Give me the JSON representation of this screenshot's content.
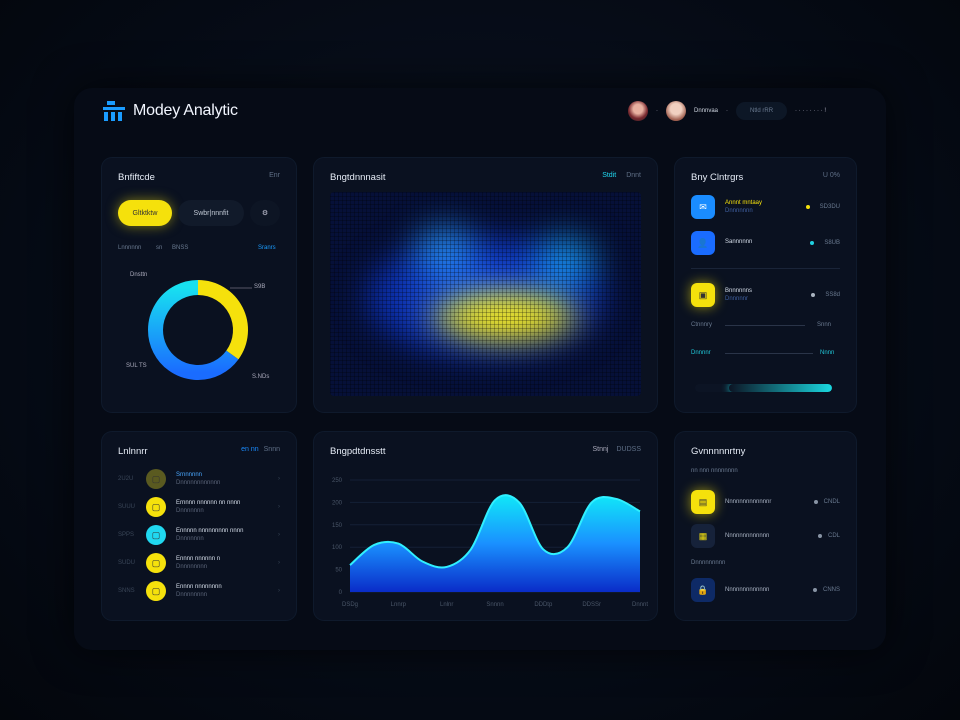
{
  "app": {
    "title": "Modey Analytic",
    "user_name": "Dnnnvaa",
    "header_button": "Ntld rRR",
    "header_meta": "· · · · · · · ·  !"
  },
  "card_overview": {
    "title": "Bnfiftcde",
    "meta": "Enr",
    "btn_active": "Gltktktw",
    "btn_secondary": "Swbr|nnnfit",
    "btn_icon": "filter-icon",
    "stats": [
      "Lnnnnnn",
      "sn",
      "BNSS"
    ],
    "stats_right": "Sranrs",
    "donut_labels": [
      "Dnsttn",
      "S9B",
      "SUL TS",
      "S.NDs"
    ],
    "donut": {
      "segments": [
        {
          "color": "#f5e10c",
          "value": 35
        },
        {
          "color": "#1aa0ff",
          "value": 65
        }
      ]
    }
  },
  "card_heatmap": {
    "title": "Bngtdnnnasit",
    "tag": "Stdit",
    "meta": "Dnnt"
  },
  "card_right": {
    "title": "Bny Clntrgrs",
    "meta": "U 0%",
    "items": [
      {
        "name": "Annnt mntaay",
        "sub": "Dnnnnnnn",
        "value": "SD3DU",
        "icon": "chat-icon",
        "color": "#1a8cff",
        "dot": "#f5e10c"
      },
      {
        "name": "Sannnnnn",
        "sub": "",
        "value": "S8UB",
        "icon": "user-icon",
        "color": "#1a6cff",
        "dot": "#20d0e0"
      },
      {
        "name": "Bnnnnnns",
        "sub": "Dnnnnnr",
        "value": "SS8d",
        "icon": "folder-icon",
        "color": "#f5e10c",
        "dot": "#aab4c0"
      }
    ],
    "slider1_label": "Ctnnnry",
    "slider1_value": "Snnn",
    "slider2_label": "Dnnnnr",
    "slider2_value": "Nnnn",
    "progress": 0.75
  },
  "card_list": {
    "title": "Lnlnnrr",
    "meta_accent": "en nn",
    "meta": "Snnn",
    "items": [
      {
        "id": "2U2U",
        "name": "Srnnnnnn",
        "sub": "Dnnnnnnnnnnnn",
        "color": "#5a5a20"
      },
      {
        "id": "SUUU",
        "name": "Ernnnn nnnnnn nn nnnn",
        "sub": "Dnnnnnnn",
        "color": "#f5e10c"
      },
      {
        "id": "SPPS",
        "name": "Ennnnn nnnnnnnnn nnnn",
        "sub": "Dnnnnnnn",
        "color": "#20d8f0"
      },
      {
        "id": "SUDU",
        "name": "Ennnn nnnnnn n",
        "sub": "Dnnnnnnnn",
        "color": "#f5e10c"
      },
      {
        "id": "SNNS",
        "name": "Ennnn nnnnnnnn",
        "sub": "Dnnnnnnnn",
        "color": "#f5e10c"
      }
    ]
  },
  "chart_data": {
    "type": "area",
    "title": "Bngpdtdnsstt",
    "legend": [
      "Stnnj",
      "DUDSS"
    ],
    "y_ticks": [
      "0",
      "50",
      "100",
      "150",
      "200",
      "250"
    ],
    "ylim": [
      0,
      250
    ],
    "x_labels": [
      "DSDg",
      "Lnnrp",
      "Lnlnr",
      "Snnnn",
      "DDDtp",
      "DDSSr",
      "Dnnnt"
    ],
    "x": [
      0,
      0.5,
      1,
      1.5,
      2,
      2.5,
      3,
      3.5,
      4,
      4.5,
      5,
      5.5,
      6
    ],
    "values": [
      60,
      105,
      108,
      68,
      56,
      95,
      205,
      200,
      95,
      100,
      200,
      208,
      180
    ],
    "grid": true
  },
  "card_activity": {
    "title": "Gvnnnnnrtny",
    "sub1": "nn nnn  nnnnnnnn",
    "sub2": "Dnnnnnnnnn",
    "items": [
      {
        "name": "Nnnnnnnnnnnnnr",
        "value": "CNDL",
        "color": "#f5e10c",
        "icon": "document-icon"
      },
      {
        "name": "Nnnnnnnnnnnnn",
        "value": "CDL",
        "color": "#16223a",
        "icon": "calendar-icon"
      },
      {
        "name": "Nnnnnnnnnnnnn",
        "value": "CNNS",
        "color": "#0e2a66",
        "icon": "lock-icon"
      }
    ]
  }
}
